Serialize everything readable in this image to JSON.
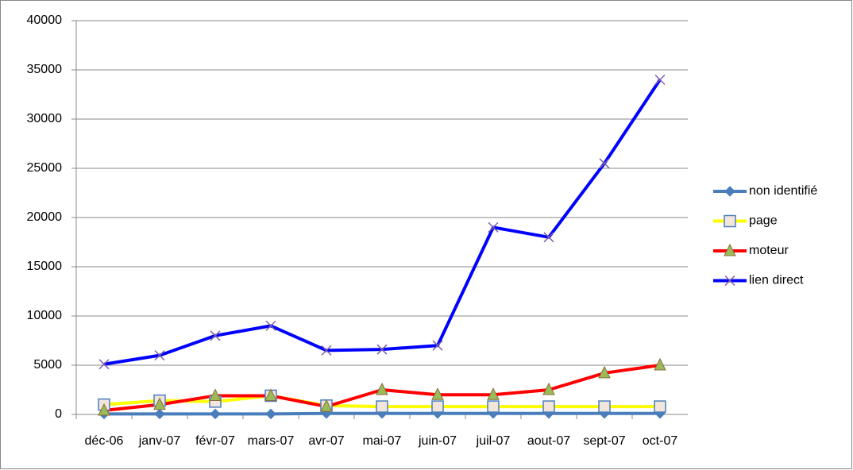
{
  "chart_data": {
    "type": "line",
    "categories": [
      "déc-06",
      "janv-07",
      "févr-07",
      "mars-07",
      "avr-07",
      "mai-07",
      "juin-07",
      "juil-07",
      "aout-07",
      "sept-07",
      "oct-07"
    ],
    "series": [
      {
        "name": "non identifié",
        "color": "#4a7ebb",
        "marker": "diamond",
        "marker_color": "#4a7ebb",
        "values": [
          50,
          50,
          50,
          50,
          100,
          100,
          100,
          100,
          100,
          100,
          100
        ]
      },
      {
        "name": "page",
        "color": "#ffff00",
        "marker": "square",
        "marker_color": "#f2e6dc",
        "values": [
          1000,
          1400,
          1300,
          1900,
          900,
          800,
          800,
          800,
          800,
          800,
          800
        ]
      },
      {
        "name": "moteur",
        "color": "#ff0000",
        "marker": "triangle",
        "marker_color": "#9bbb59",
        "values": [
          400,
          1000,
          1900,
          1900,
          800,
          2500,
          2000,
          2000,
          2500,
          4200,
          5000
        ]
      },
      {
        "name": "lien direct",
        "color": "#0000ff",
        "marker": "x",
        "marker_color": "#7f5fa8",
        "values": [
          5100,
          6000,
          8000,
          9000,
          6500,
          6600,
          7000,
          19000,
          18000,
          25500,
          34000
        ]
      }
    ],
    "ylim": [
      0,
      40000
    ],
    "yticks": [
      0,
      5000,
      10000,
      15000,
      20000,
      25000,
      30000,
      35000,
      40000
    ],
    "grid": true,
    "legend": "right"
  }
}
